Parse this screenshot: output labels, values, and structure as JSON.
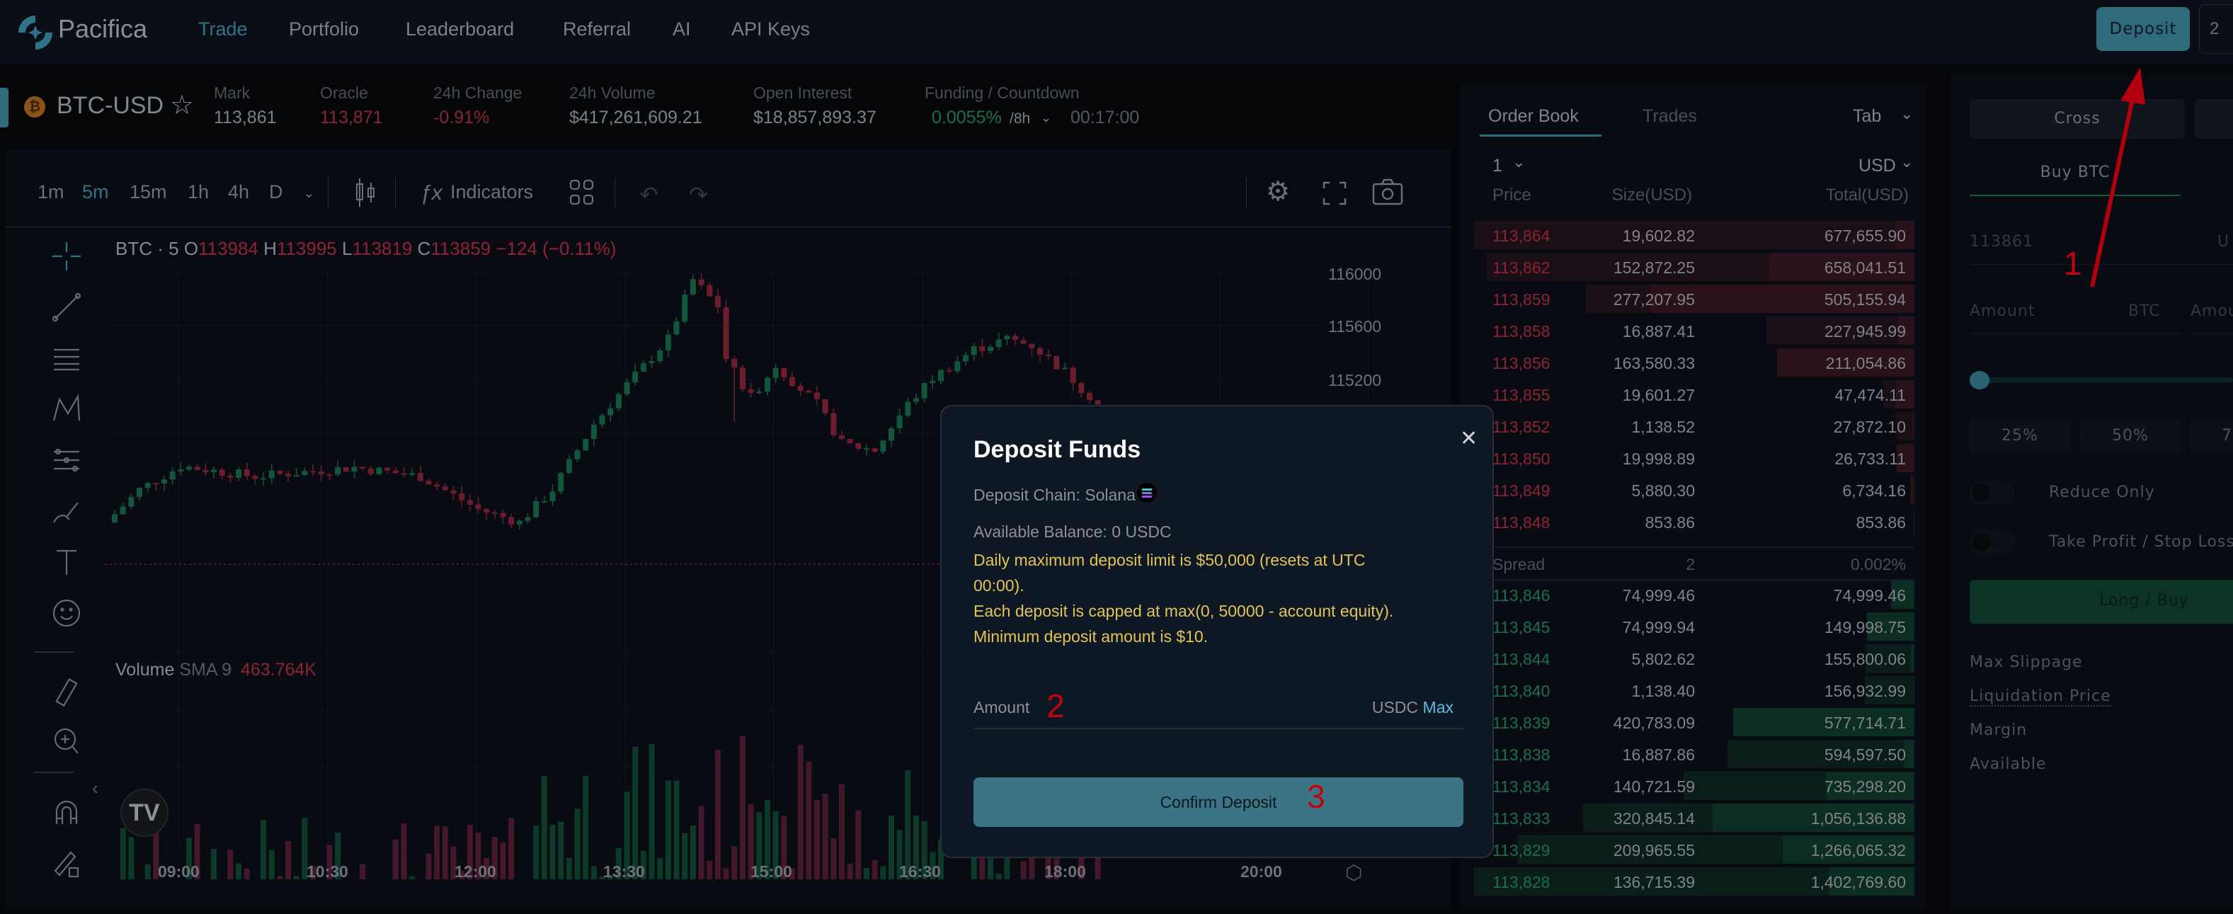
{
  "nav": {
    "brand": "Pacifica",
    "links": [
      "Trade",
      "Portfolio",
      "Leaderboard",
      "Referral",
      "AI",
      "API Keys"
    ],
    "active": "Trade",
    "deposit_button": "Deposit",
    "account_button_partial": "2"
  },
  "ticker": {
    "symbol": "BTC-USD",
    "stats": [
      {
        "label": "Mark",
        "value": "113,861",
        "color": "#7d8086"
      },
      {
        "label": "Oracle",
        "value": "113,871",
        "color": "#8e2236"
      },
      {
        "label": "24h Change",
        "value": "-0.91%",
        "color": "#8e2236"
      },
      {
        "label": "24h Volume",
        "value": "$417,261,609.21",
        "color": "#7d8086"
      },
      {
        "label": "Open Interest",
        "value": "$18,857,893.37",
        "color": "#7d8086"
      }
    ],
    "funding_label": "Funding / Countdown",
    "funding_rate": "0.0055%",
    "funding_period": "/8h",
    "countdown": "00:17:00"
  },
  "chart": {
    "intervals": [
      "1m",
      "5m",
      "15m",
      "1h",
      "4h",
      "D"
    ],
    "active_interval": "5m",
    "indicators_label": "Indicators",
    "legend": {
      "title": "BTC · 5",
      "o": "113984",
      "h": "113995",
      "l": "113819",
      "c": "113859",
      "change": "−124 (−0.11%)"
    },
    "price_ticks": [
      "116000",
      "115600",
      "115200"
    ],
    "time_ticks": [
      "09:00",
      "10:30",
      "12:00",
      "13:30",
      "15:00",
      "16:30",
      "18:00",
      "20:00"
    ],
    "volume_label": "Volume",
    "volume_sma_label": "SMA 9",
    "volume_sma_value": "463.764K",
    "price_path": [
      [
        0,
        114100
      ],
      [
        4,
        114350
      ],
      [
        9,
        114530
      ],
      [
        18,
        114450
      ],
      [
        30,
        114520
      ],
      [
        38,
        114450
      ],
      [
        45,
        114200
      ],
      [
        50,
        114100
      ],
      [
        54,
        114350
      ],
      [
        59,
        114850
      ],
      [
        63,
        115150
      ],
      [
        68,
        115500
      ],
      [
        71,
        115950
      ],
      [
        74,
        115750
      ],
      [
        75,
        115350
      ],
      [
        78,
        115050
      ],
      [
        81,
        115300
      ],
      [
        86,
        115000
      ],
      [
        89,
        114700
      ],
      [
        93,
        114650
      ],
      [
        97,
        115000
      ],
      [
        100,
        115200
      ],
      [
        105,
        115420
      ],
      [
        109,
        115500
      ],
      [
        112,
        115450
      ],
      [
        116,
        115250
      ],
      [
        120,
        115000
      ]
    ],
    "up_color": "#12573b",
    "down_color": "#6e1d2e"
  },
  "orderbook": {
    "tabs": [
      "Order Book",
      "Trades"
    ],
    "tab_menu": "Tab",
    "grouping": "1",
    "unit": "USD",
    "headers": [
      "Price",
      "Size(USD)",
      "Total(USD)"
    ],
    "asks": [
      [
        "113,864",
        "19,602.82",
        "677,655.90"
      ],
      [
        "113,862",
        "152,872.25",
        "658,041.51"
      ],
      [
        "113,859",
        "277,207.95",
        "505,155.94"
      ],
      [
        "113,858",
        "16,887.41",
        "227,945.99"
      ],
      [
        "113,856",
        "163,580.33",
        "211,054.86"
      ],
      [
        "113,855",
        "19,601.27",
        "47,474.11"
      ],
      [
        "113,852",
        "1,138.52",
        "27,872.10"
      ],
      [
        "113,850",
        "19,998.89",
        "26,733.11"
      ],
      [
        "113,849",
        "5,880.30",
        "6,734.16"
      ],
      [
        "113,848",
        "853.86",
        "853.86"
      ]
    ],
    "spread": {
      "label": "Spread",
      "value": "2",
      "percent": "0.002%"
    },
    "bids": [
      [
        "113,846",
        "74,999.46",
        "74,999.46"
      ],
      [
        "113,845",
        "74,999.94",
        "149,998.75"
      ],
      [
        "113,844",
        "5,802.62",
        "155,800.06"
      ],
      [
        "113,840",
        "1,138.40",
        "156,932.99"
      ],
      [
        "113,839",
        "420,783.09",
        "577,714.71"
      ],
      [
        "113,838",
        "16,887.86",
        "594,597.50"
      ],
      [
        "113,834",
        "140,721.59",
        "735,298.20"
      ],
      [
        "113,833",
        "320,845.14",
        "1,056,136.88"
      ],
      [
        "113,829",
        "209,965.55",
        "1,266,065.32"
      ],
      [
        "113,828",
        "136,715.39",
        "1,402,769.60"
      ]
    ]
  },
  "order_form": {
    "margin_mode": "Cross",
    "side_tab": "Buy BTC",
    "price_value": "113861",
    "price_unit_partial": "U",
    "amount_placeholder": "Amount",
    "amount_unit": "BTC",
    "amount2_partial": "Amou",
    "slider_percent": 0,
    "percent_buttons": [
      "25%",
      "50%",
      "7"
    ],
    "reduce_only": "Reduce Only",
    "tp_sl": "Take Profit / Stop Loss",
    "submit": "Long / Buy",
    "info": [
      "Max Slippage",
      "Liquidation Price",
      "Margin",
      "Available"
    ]
  },
  "modal": {
    "title": "Deposit Funds",
    "chain": "Deposit Chain: Solana",
    "balance": "Available Balance: 0 USDC",
    "notice_1": "Daily maximum deposit limit is $50,000 (resets at UTC",
    "notice_1b": "00:00).",
    "notice_2": "Each deposit is capped at max(0, 50000 - account equity).",
    "notice_3": "Minimum deposit amount is $10.",
    "amount_placeholder": "Amount",
    "amount_unit": "USDC",
    "max_label": "Max",
    "confirm": "Confirm Deposit"
  },
  "annotations": [
    "1",
    "2",
    "3"
  ]
}
